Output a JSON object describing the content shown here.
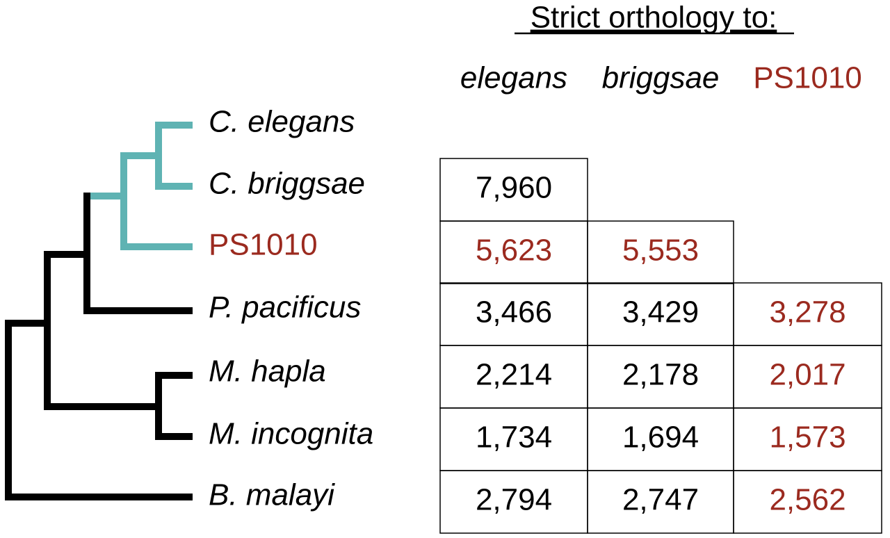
{
  "title": "Strict orthology to:",
  "column_headers": [
    "elegans",
    "briggsae",
    "PS1010"
  ],
  "rows": [
    {
      "species": "C. elegans",
      "values": []
    },
    {
      "species": "C. briggsae",
      "values": [
        "7,960"
      ]
    },
    {
      "species": "PS1010",
      "values": [
        "5,623",
        "5,553"
      ]
    },
    {
      "species": "P. pacificus",
      "values": [
        "3,466",
        "3,429",
        "3,278"
      ]
    },
    {
      "species": "M. hapla",
      "values": [
        "2,214",
        "2,178",
        "2,017"
      ]
    },
    {
      "species": "M. incognita",
      "values": [
        "1,734",
        "1,694",
        "1,573"
      ]
    },
    {
      "species": "B. malayi",
      "values": [
        "2,794",
        "2,747",
        "2,562"
      ]
    }
  ]
}
